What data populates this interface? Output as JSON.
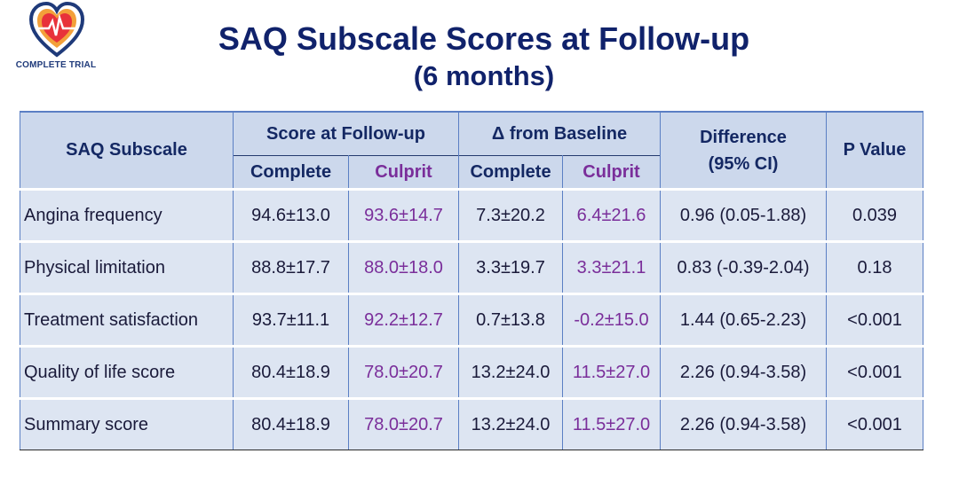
{
  "logo": {
    "text": "COMPLETE TRIAL"
  },
  "title": "SAQ Subscale Scores at Follow-up",
  "subtitle": "(6 months)",
  "table": {
    "headers": {
      "subscale": "SAQ Subscale",
      "score_group": "Score at Follow-up",
      "delta_group": "Δ from Baseline",
      "difference": "Difference (95% CI)",
      "p_value": "P Value",
      "complete": "Complete",
      "culprit": "Culprit"
    },
    "rows": [
      {
        "subscale": "Angina frequency",
        "score_complete": "94.6±13.0",
        "score_culprit": "93.6±14.7",
        "delta_complete": "7.3±20.2",
        "delta_culprit": "6.4±21.6",
        "difference": "0.96 (0.05-1.88)",
        "p_value": "0.039"
      },
      {
        "subscale": "Physical limitation",
        "score_complete": "88.8±17.7",
        "score_culprit": "88.0±18.0",
        "delta_complete": "3.3±19.7",
        "delta_culprit": "3.3±21.1",
        "difference": "0.83 (-0.39-2.04)",
        "p_value": "0.18"
      },
      {
        "subscale": "Treatment satisfaction",
        "score_complete": "93.7±11.1",
        "score_culprit": "92.2±12.7",
        "delta_complete": "0.7±13.8",
        "delta_culprit": "-0.2±15.0",
        "difference": "1.44 (0.65-2.23)",
        "p_value": "<0.001"
      },
      {
        "subscale": "Quality of life score",
        "score_complete": "80.4±18.9",
        "score_culprit": "78.0±20.7",
        "delta_complete": "13.2±24.0",
        "delta_culprit": "11.5±27.0",
        "difference": "2.26 (0.94-3.58)",
        "p_value": "<0.001"
      },
      {
        "subscale": "Summary score",
        "score_complete": "80.4±18.9",
        "score_culprit": "78.0±20.7",
        "delta_complete": "13.2±24.0",
        "delta_culprit": "11.5±27.0",
        "difference": "2.26 (0.94-3.58)",
        "p_value": "<0.001"
      }
    ]
  },
  "colors": {
    "title": "#10226b",
    "header_bg": "#ccd8ec",
    "row_bg": "#dde5f2",
    "culprit": "#7a2e9a",
    "border": "#5b7fc4"
  }
}
